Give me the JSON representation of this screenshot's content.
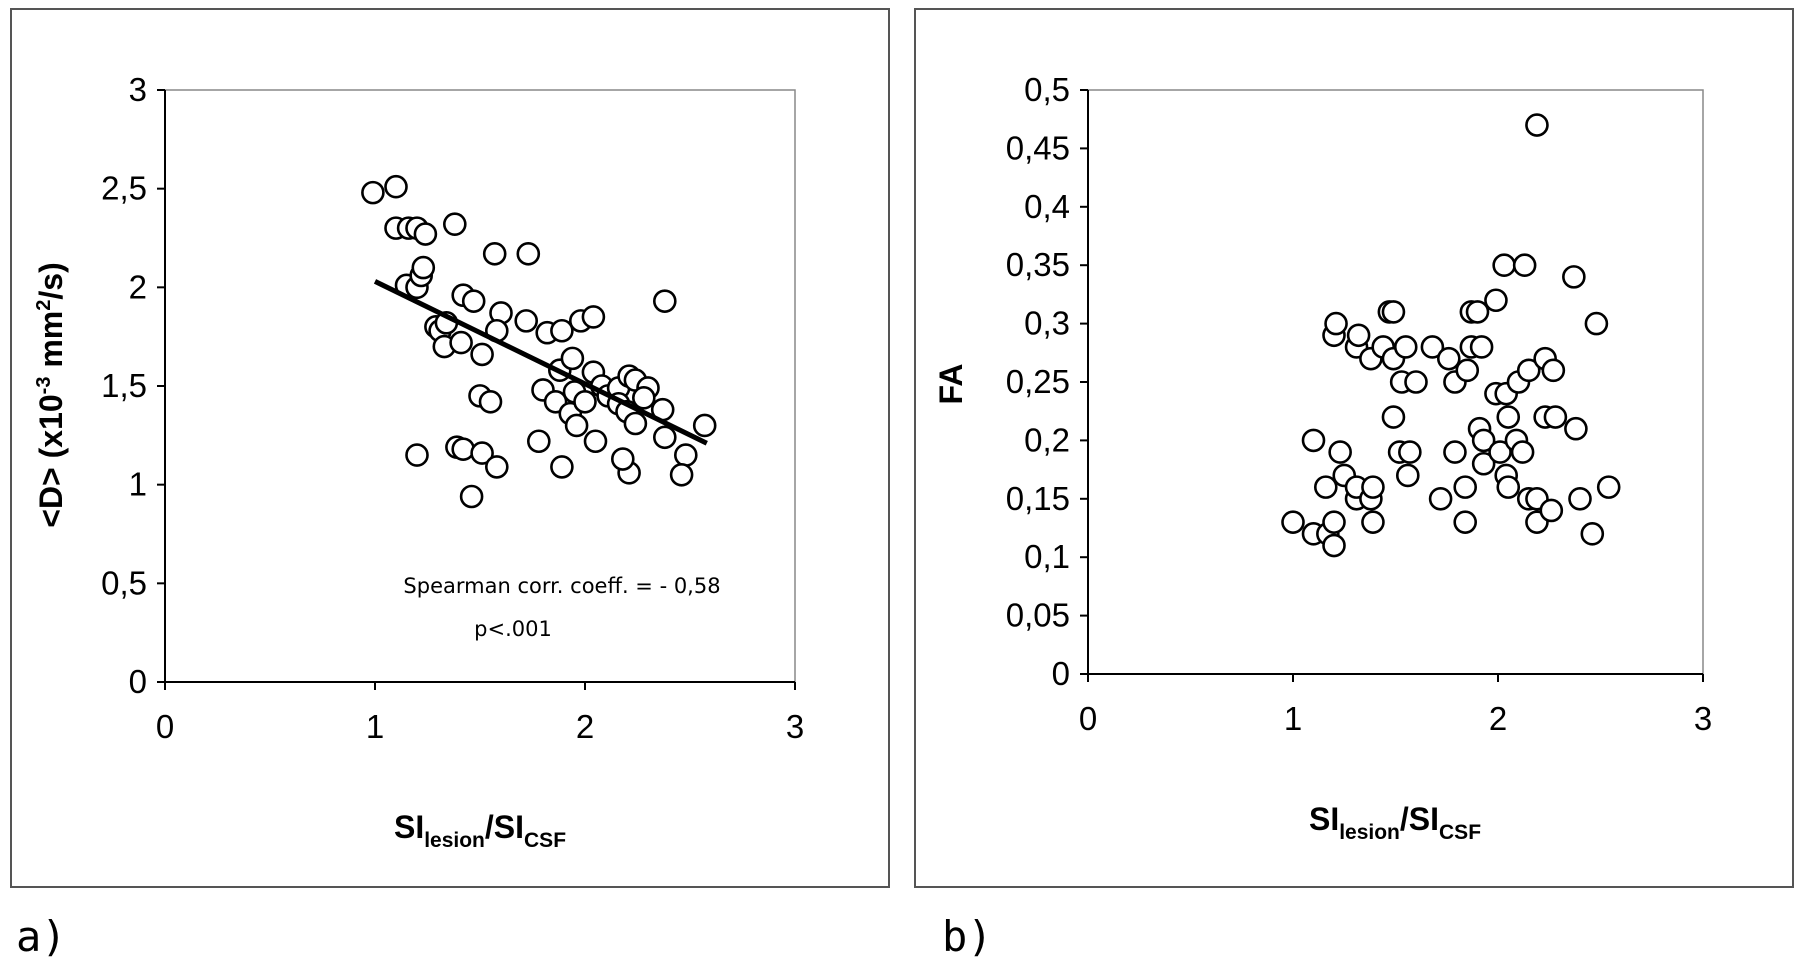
{
  "panel_labels": {
    "a": "a)",
    "b": "b)"
  },
  "chart_data": [
    {
      "type": "scatter",
      "panel": "a)",
      "title": "",
      "xlabel": {
        "main": "SI",
        "sub1": "lesion",
        "mid": "/SI",
        "sub2": "CSF"
      },
      "ylabel": "<D> (x10-3 mm2/s)",
      "ylabel_parts": {
        "a": "<D> (x10",
        "sup1": "-3",
        "b": " mm",
        "sup2": "2",
        "c": "/s)"
      },
      "xlim": [
        0,
        3
      ],
      "ylim": [
        0,
        3
      ],
      "xticks": [
        "0",
        "1",
        "2",
        "3"
      ],
      "yticks": [
        "0",
        "0,5",
        "1",
        "1,5",
        "2",
        "2,5",
        "3"
      ],
      "grid": false,
      "trendline": {
        "x": [
          1.0,
          2.58
        ],
        "y": [
          2.03,
          1.21
        ]
      },
      "annotations": [
        "Spearman corr. coeff. = - 0,58",
        "p<.001"
      ],
      "points": [
        [
          0.99,
          2.48
        ],
        [
          1.1,
          2.51
        ],
        [
          1.1,
          2.3
        ],
        [
          1.16,
          2.3
        ],
        [
          1.2,
          2.3
        ],
        [
          1.24,
          2.27
        ],
        [
          1.15,
          2.01
        ],
        [
          1.2,
          2.0
        ],
        [
          1.22,
          2.06
        ],
        [
          1.23,
          2.1
        ],
        [
          1.38,
          2.32
        ],
        [
          1.57,
          2.17
        ],
        [
          1.73,
          2.17
        ],
        [
          1.42,
          1.96
        ],
        [
          1.47,
          1.93
        ],
        [
          1.29,
          1.8
        ],
        [
          1.31,
          1.78
        ],
        [
          1.33,
          1.7
        ],
        [
          1.34,
          1.82
        ],
        [
          1.41,
          1.72
        ],
        [
          1.6,
          1.87
        ],
        [
          1.58,
          1.78
        ],
        [
          1.72,
          1.83
        ],
        [
          1.82,
          1.77
        ],
        [
          1.89,
          1.78
        ],
        [
          1.98,
          1.83
        ],
        [
          2.04,
          1.85
        ],
        [
          1.51,
          1.66
        ],
        [
          1.88,
          1.58
        ],
        [
          1.94,
          1.64
        ],
        [
          1.5,
          1.45
        ],
        [
          1.55,
          1.42
        ],
        [
          1.8,
          1.48
        ],
        [
          1.86,
          1.42
        ],
        [
          1.93,
          1.36
        ],
        [
          1.95,
          1.47
        ],
        [
          2.0,
          1.42
        ],
        [
          2.04,
          1.57
        ],
        [
          2.08,
          1.5
        ],
        [
          2.11,
          1.45
        ],
        [
          2.16,
          1.49
        ],
        [
          2.21,
          1.55
        ],
        [
          2.24,
          1.53
        ],
        [
          2.3,
          1.49
        ],
        [
          2.16,
          1.41
        ],
        [
          2.2,
          1.37
        ],
        [
          2.24,
          1.31
        ],
        [
          2.28,
          1.44
        ],
        [
          2.37,
          1.38
        ],
        [
          2.38,
          1.24
        ],
        [
          2.57,
          1.3
        ],
        [
          2.48,
          1.15
        ],
        [
          2.46,
          1.05
        ],
        [
          2.21,
          1.06
        ],
        [
          2.18,
          1.13
        ],
        [
          2.05,
          1.22
        ],
        [
          1.96,
          1.3
        ],
        [
          1.78,
          1.22
        ],
        [
          1.89,
          1.09
        ],
        [
          1.2,
          1.15
        ],
        [
          1.39,
          1.19
        ],
        [
          1.42,
          1.18
        ],
        [
          1.51,
          1.16
        ],
        [
          1.58,
          1.09
        ],
        [
          1.46,
          0.94
        ],
        [
          2.38,
          1.93
        ]
      ]
    },
    {
      "type": "scatter",
      "panel": "b)",
      "title": "",
      "xlabel": {
        "main": "SI",
        "sub1": "lesion",
        "mid": "/SI",
        "sub2": "CSF"
      },
      "ylabel": "FA",
      "xlim": [
        0,
        3
      ],
      "ylim": [
        0,
        0.5
      ],
      "xticks": [
        "0",
        "1",
        "2",
        "3"
      ],
      "yticks": [
        "0",
        "0,05",
        "0,1",
        "0,15",
        "0,2",
        "0,25",
        "0,3",
        "0,35",
        "0,4",
        "0,45",
        "0,5"
      ],
      "grid": false,
      "points": [
        [
          1.0,
          0.13
        ],
        [
          1.1,
          0.12
        ],
        [
          1.1,
          0.2
        ],
        [
          1.16,
          0.16
        ],
        [
          1.17,
          0.12
        ],
        [
          1.2,
          0.11
        ],
        [
          1.2,
          0.13
        ],
        [
          1.2,
          0.29
        ],
        [
          1.21,
          0.3
        ],
        [
          1.23,
          0.19
        ],
        [
          1.25,
          0.17
        ],
        [
          1.31,
          0.15
        ],
        [
          1.31,
          0.16
        ],
        [
          1.31,
          0.28
        ],
        [
          1.32,
          0.29
        ],
        [
          1.38,
          0.15
        ],
        [
          1.39,
          0.16
        ],
        [
          1.39,
          0.13
        ],
        [
          1.38,
          0.27
        ],
        [
          1.44,
          0.28
        ],
        [
          1.47,
          0.31
        ],
        [
          1.49,
          0.31
        ],
        [
          1.49,
          0.27
        ],
        [
          1.49,
          0.22
        ],
        [
          1.52,
          0.19
        ],
        [
          1.53,
          0.25
        ],
        [
          1.55,
          0.28
        ],
        [
          1.56,
          0.17
        ],
        [
          1.57,
          0.19
        ],
        [
          1.6,
          0.25
        ],
        [
          1.68,
          0.28
        ],
        [
          1.72,
          0.15
        ],
        [
          1.76,
          0.27
        ],
        [
          1.79,
          0.25
        ],
        [
          1.79,
          0.19
        ],
        [
          1.84,
          0.16
        ],
        [
          1.84,
          0.13
        ],
        [
          1.85,
          0.26
        ],
        [
          1.87,
          0.28
        ],
        [
          1.87,
          0.31
        ],
        [
          1.9,
          0.31
        ],
        [
          1.91,
          0.21
        ],
        [
          1.92,
          0.28
        ],
        [
          1.93,
          0.18
        ],
        [
          1.93,
          0.2
        ],
        [
          1.99,
          0.24
        ],
        [
          1.99,
          0.32
        ],
        [
          2.01,
          0.19
        ],
        [
          2.03,
          0.35
        ],
        [
          2.04,
          0.17
        ],
        [
          2.04,
          0.24
        ],
        [
          2.05,
          0.16
        ],
        [
          2.05,
          0.22
        ],
        [
          2.09,
          0.2
        ],
        [
          2.1,
          0.25
        ],
        [
          2.12,
          0.19
        ],
        [
          2.13,
          0.35
        ],
        [
          2.15,
          0.15
        ],
        [
          2.15,
          0.26
        ],
        [
          2.19,
          0.13
        ],
        [
          2.19,
          0.15
        ],
        [
          2.19,
          0.47
        ],
        [
          2.23,
          0.27
        ],
        [
          2.23,
          0.22
        ],
        [
          2.26,
          0.14
        ],
        [
          2.27,
          0.26
        ],
        [
          2.28,
          0.22
        ],
        [
          2.37,
          0.34
        ],
        [
          2.38,
          0.21
        ],
        [
          2.4,
          0.15
        ],
        [
          2.46,
          0.12
        ],
        [
          2.48,
          0.3
        ],
        [
          2.54,
          0.16
        ]
      ]
    }
  ]
}
